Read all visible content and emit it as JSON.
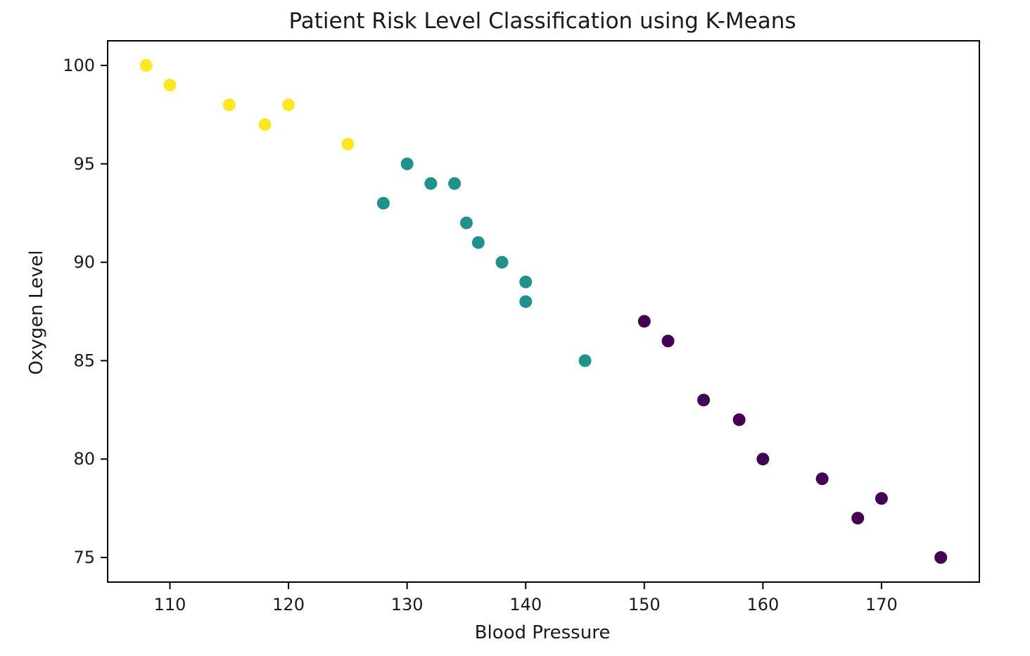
{
  "chart_data": {
    "type": "scatter",
    "title": "Patient Risk Level Classification using K-Means",
    "xlabel": "Blood Pressure",
    "ylabel": "Oxygen Level",
    "xlim": [
      104.75,
      178.25
    ],
    "ylim": [
      73.75,
      101.25
    ],
    "xticks": [
      110,
      120,
      130,
      140,
      150,
      160,
      170
    ],
    "yticks": [
      75,
      80,
      85,
      90,
      95,
      100
    ],
    "grid": false,
    "legend": "none",
    "cluster_colors": {
      "0": "#440154",
      "1": "#21918c",
      "2": "#fde725"
    },
    "points": [
      {
        "x": 108,
        "y": 100,
        "cluster": 2
      },
      {
        "x": 110,
        "y": 99,
        "cluster": 2
      },
      {
        "x": 115,
        "y": 98,
        "cluster": 2
      },
      {
        "x": 118,
        "y": 97,
        "cluster": 2
      },
      {
        "x": 120,
        "y": 98,
        "cluster": 2
      },
      {
        "x": 125,
        "y": 96,
        "cluster": 2
      },
      {
        "x": 128,
        "y": 93,
        "cluster": 1
      },
      {
        "x": 130,
        "y": 95,
        "cluster": 1
      },
      {
        "x": 132,
        "y": 94,
        "cluster": 1
      },
      {
        "x": 134,
        "y": 94,
        "cluster": 1
      },
      {
        "x": 135,
        "y": 92,
        "cluster": 1
      },
      {
        "x": 136,
        "y": 91,
        "cluster": 1
      },
      {
        "x": 138,
        "y": 90,
        "cluster": 1
      },
      {
        "x": 140,
        "y": 89,
        "cluster": 1
      },
      {
        "x": 140,
        "y": 88,
        "cluster": 1
      },
      {
        "x": 145,
        "y": 85,
        "cluster": 1
      },
      {
        "x": 150,
        "y": 87,
        "cluster": 0
      },
      {
        "x": 152,
        "y": 86,
        "cluster": 0
      },
      {
        "x": 155,
        "y": 83,
        "cluster": 0
      },
      {
        "x": 158,
        "y": 82,
        "cluster": 0
      },
      {
        "x": 160,
        "y": 80,
        "cluster": 0
      },
      {
        "x": 165,
        "y": 79,
        "cluster": 0
      },
      {
        "x": 168,
        "y": 77,
        "cluster": 0
      },
      {
        "x": 170,
        "y": 78,
        "cluster": 0
      },
      {
        "x": 175,
        "y": 75,
        "cluster": 0
      }
    ]
  }
}
